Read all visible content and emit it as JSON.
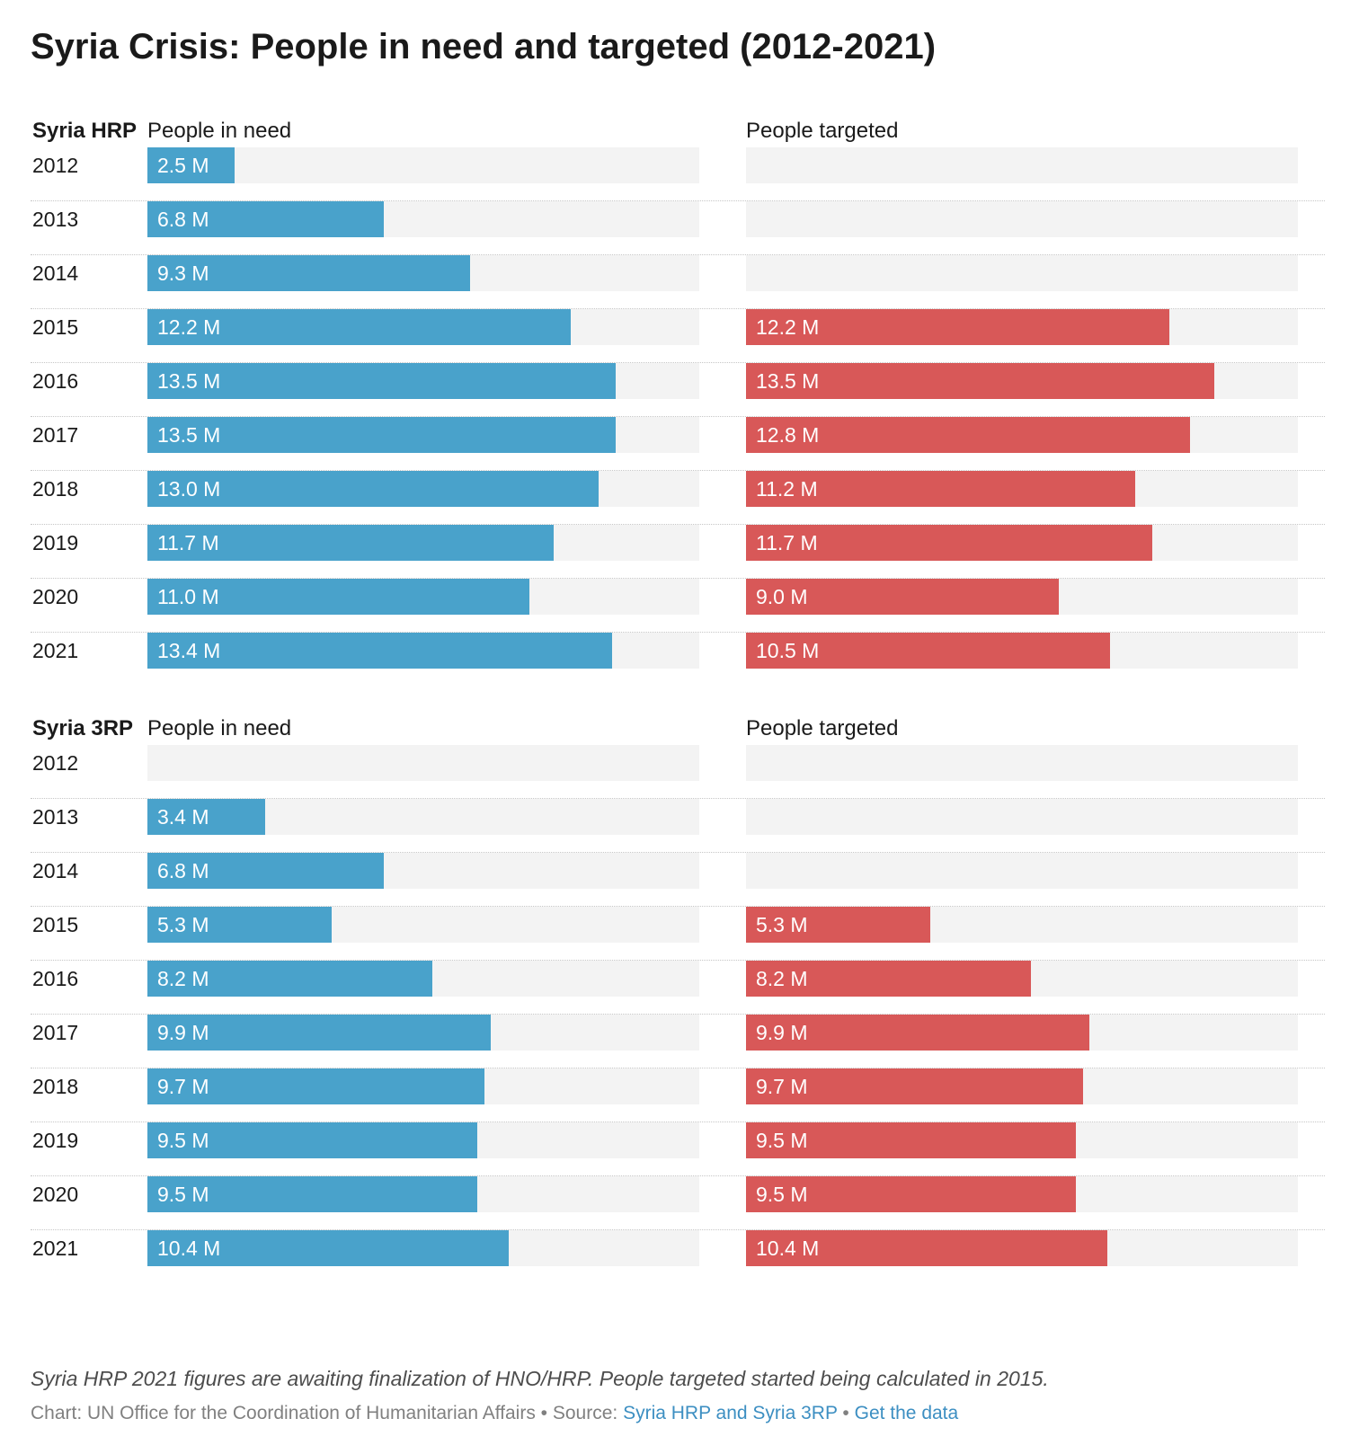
{
  "title": "Syria Crisis: People in need and targeted (2012-2021)",
  "colors": {
    "need": "#49a2cb",
    "targeted": "#d85858",
    "track": "#f3f3f3"
  },
  "chart_data": [
    {
      "type": "bar",
      "name": "Syria HRP",
      "columns": [
        "People in need",
        "People targeted"
      ],
      "categories": [
        "2012",
        "2013",
        "2014",
        "2015",
        "2016",
        "2017",
        "2018",
        "2019",
        "2020",
        "2021"
      ],
      "max": 15.9,
      "series": [
        {
          "name": "People in need",
          "values": [
            2.5,
            6.8,
            9.3,
            12.2,
            13.5,
            13.5,
            13.0,
            11.7,
            11.0,
            13.4
          ],
          "labels": [
            "2.5 M",
            "6.8 M",
            "9.3 M",
            "12.2 M",
            "13.5 M",
            "13.5 M",
            "13.0 M",
            "11.7 M",
            "11.0 M",
            "13.4 M"
          ]
        },
        {
          "name": "People targeted",
          "values": [
            null,
            null,
            null,
            12.2,
            13.5,
            12.8,
            11.2,
            11.7,
            9.0,
            10.5
          ],
          "labels": [
            "",
            "",
            "",
            "12.2 M",
            "13.5 M",
            "12.8 M",
            "11.2 M",
            "11.7 M",
            "9.0 M",
            "10.5 M"
          ]
        }
      ]
    },
    {
      "type": "bar",
      "name": "Syria 3RP",
      "columns": [
        "People in need",
        "People targeted"
      ],
      "categories": [
        "2012",
        "2013",
        "2014",
        "2015",
        "2016",
        "2017",
        "2018",
        "2019",
        "2020",
        "2021"
      ],
      "max": 15.9,
      "series": [
        {
          "name": "People in need",
          "values": [
            null,
            3.4,
            6.8,
            5.3,
            8.2,
            9.9,
            9.7,
            9.5,
            9.5,
            10.4
          ],
          "labels": [
            "",
            "3.4 M",
            "6.8 M",
            "5.3 M",
            "8.2 M",
            "9.9 M",
            "9.7 M",
            "9.5 M",
            "9.5 M",
            "10.4 M"
          ]
        },
        {
          "name": "People targeted",
          "values": [
            null,
            null,
            null,
            5.3,
            8.2,
            9.9,
            9.7,
            9.5,
            9.5,
            10.4
          ],
          "labels": [
            "",
            "",
            "",
            "5.3 M",
            "8.2 M",
            "9.9 M",
            "9.7 M",
            "9.5 M",
            "9.5 M",
            "10.4 M"
          ]
        }
      ]
    }
  ],
  "note": "Syria HRP 2021 figures are awaiting finalization of HNO/HRP. People targeted started being calculated in 2015.",
  "credits": {
    "chart": "Chart: UN Office for the Coordination of Humanitarian Affairs",
    "separator": " • ",
    "source_prefix": "Source: ",
    "source_link": "Syria HRP and Syria 3RP",
    "data_link": "Get the data"
  }
}
